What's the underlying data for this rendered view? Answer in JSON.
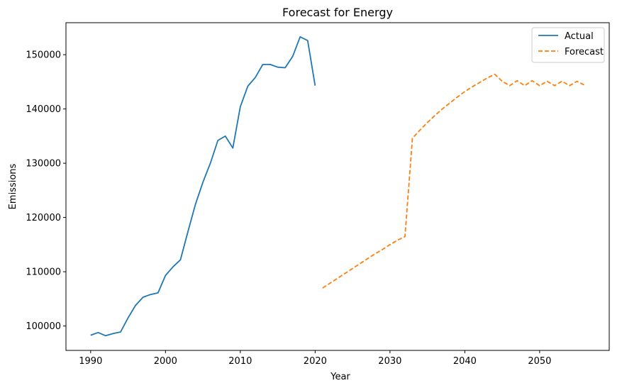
{
  "chart_data": {
    "type": "line",
    "title": "Forecast for Energy",
    "xlabel": "Year",
    "ylabel": "Emissions",
    "xlim": [
      1986.7,
      2059.3
    ],
    "ylim": [
      95500,
      155900
    ],
    "xticks": [
      1990,
      2000,
      2010,
      2020,
      2030,
      2040,
      2050
    ],
    "xtick_labels": [
      "1990",
      "2000",
      "2010",
      "2020",
      "2030",
      "2040",
      "2050"
    ],
    "yticks": [
      100000,
      110000,
      120000,
      130000,
      140000,
      150000
    ],
    "ytick_labels": [
      "100000",
      "110000",
      "120000",
      "130000",
      "140000",
      "150000"
    ],
    "grid": false,
    "legend": {
      "placement": "top-right"
    },
    "series": [
      {
        "name": "Actual",
        "color": "#1f77b4",
        "style": "solid",
        "x": [
          1990,
          1991,
          1992,
          1993,
          1994,
          1995,
          1996,
          1997,
          1998,
          1999,
          2000,
          2001,
          2002,
          2003,
          2004,
          2005,
          2006,
          2007,
          2008,
          2009,
          2010,
          2011,
          2012,
          2013,
          2014,
          2015,
          2016,
          2017,
          2018,
          2019,
          2020
        ],
        "y": [
          98300,
          98800,
          98200,
          98600,
          98900,
          101500,
          103800,
          105300,
          105800,
          106100,
          109300,
          110900,
          112200,
          117400,
          122400,
          126500,
          130000,
          134200,
          135000,
          132800,
          140400,
          144200,
          145800,
          148200,
          148200,
          147700,
          147600,
          149700,
          153300,
          152600,
          144300
        ]
      },
      {
        "name": "Forecast",
        "color": "#ff7f0e",
        "style": "dashed",
        "x": [
          2021,
          2022,
          2023,
          2024,
          2025,
          2026,
          2027,
          2028,
          2029,
          2030,
          2031,
          2032,
          2033,
          2034,
          2035,
          2036,
          2037,
          2038,
          2039,
          2040,
          2041,
          2042,
          2043,
          2044,
          2045,
          2046,
          2047,
          2048,
          2049,
          2050,
          2051,
          2052,
          2053,
          2054,
          2055,
          2056
        ],
        "y": [
          107000,
          107900,
          108800,
          109700,
          110600,
          111500,
          112400,
          113300,
          114100,
          115000,
          115800,
          116500,
          134600,
          136100,
          137500,
          138800,
          140000,
          141100,
          142200,
          143200,
          144100,
          144900,
          145700,
          146400,
          145100,
          144300,
          145200,
          144300,
          145200,
          144300,
          145100,
          144300,
          145100,
          144300,
          145100,
          144400
        ]
      }
    ]
  }
}
